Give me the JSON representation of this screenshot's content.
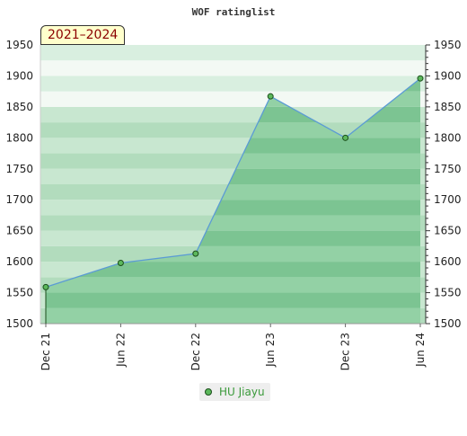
{
  "chart_data": {
    "type": "area",
    "title": "WOF ratinglist",
    "period_label": "2021–2024",
    "categories": [
      "Dec 21",
      "Jun 22",
      "Dec 22",
      "Jun 23",
      "Dec 23",
      "Jun 24"
    ],
    "series": [
      {
        "name": "HU Jiayu",
        "values": [
          1559,
          1598,
          1613,
          1867,
          1800,
          1896
        ]
      }
    ],
    "ylim": [
      1500,
      1950
    ],
    "yticks": [
      1500,
      1550,
      1600,
      1650,
      1700,
      1750,
      1800,
      1850,
      1900,
      1950
    ],
    "xlabel": "",
    "ylabel": "",
    "grid": true,
    "legend_position": "bottom-center",
    "colors": {
      "line": "#5b9bd5",
      "marker_fill": "#5cb85c",
      "marker_stroke": "#1a4d1a",
      "band_light_a": "#f3f9f4",
      "band_light_b": "#d9efe0",
      "band_dark_a": "#b2dcbd",
      "band_dark_b": "#c8e7d0",
      "area_a": "#7cc492",
      "area_b": "#93d1a5"
    }
  }
}
